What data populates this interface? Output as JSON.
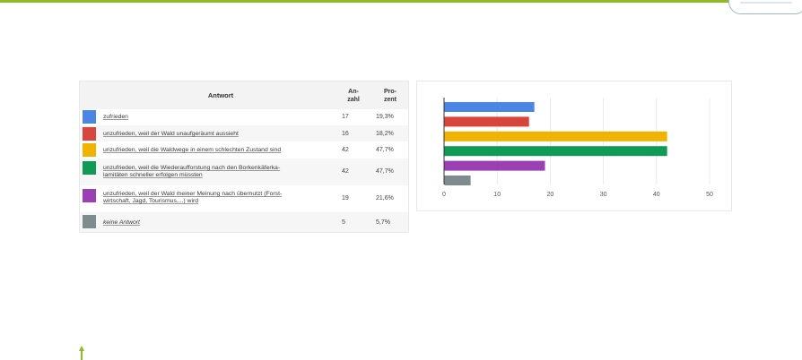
{
  "table": {
    "headers": {
      "answer": "Antwort",
      "count": "An-\nzahl",
      "percent": "Pro-\nzent"
    },
    "rows": [
      {
        "color": "#4b86e6",
        "answer": "zufrieden",
        "count": "17",
        "percent": "19,3%"
      },
      {
        "color": "#d9443c",
        "answer": "unzufrieden, weil der Wald unaufgeräumt aussieht",
        "count": "16",
        "percent": "18,2%"
      },
      {
        "color": "#f0b400",
        "answer": "unzufrieden, weil die Waldwege in einem schlechten Zustand sind",
        "count": "42",
        "percent": "47,7%"
      },
      {
        "color": "#0f9a55",
        "answer": "unzufrieden, weil die Wiederaufforstung nach den Borkenkäferka-\nlamitäten schneller erfolgen müssten",
        "count": "42",
        "percent": "47,7%"
      },
      {
        "color": "#9b3fb4",
        "answer": "unzufrieden, weil der Wald meiner Meinung nach übernutzt (Forst-\nwirtschaft, Jagd, Tourismus,...) wird",
        "count": "19",
        "percent": "21,6%"
      },
      {
        "color": "#7f8c8d",
        "answer": "keine Antwort",
        "count": "5",
        "percent": "5,7%"
      }
    ]
  },
  "chart_data": {
    "type": "bar",
    "orientation": "horizontal",
    "categories": [
      "zufrieden",
      "unzufrieden, weil der Wald unaufgeräumt aussieht",
      "unzufrieden, weil die Waldwege in einem schlechten Zustand sind",
      "unzufrieden, weil die Wiederaufforstung nach den Borkenkäferkalamitäten schneller erfolgen müssten",
      "unzufrieden, weil der Wald meiner Meinung nach übernutzt (Forstwirtschaft, Jagd, Tourismus,...) wird",
      "keine Antwort"
    ],
    "values": [
      17,
      16,
      42,
      42,
      19,
      5
    ],
    "colors": [
      "#4b86e6",
      "#d9443c",
      "#f0b400",
      "#0f9a55",
      "#9b3fb4",
      "#7f8c8d"
    ],
    "xlim": [
      0,
      50
    ],
    "xticks": [
      0,
      10,
      20,
      30,
      40,
      50
    ],
    "grid": true,
    "title": "",
    "xlabel": "",
    "ylabel": ""
  },
  "colors": {
    "accent_green": "#8dbb24"
  }
}
